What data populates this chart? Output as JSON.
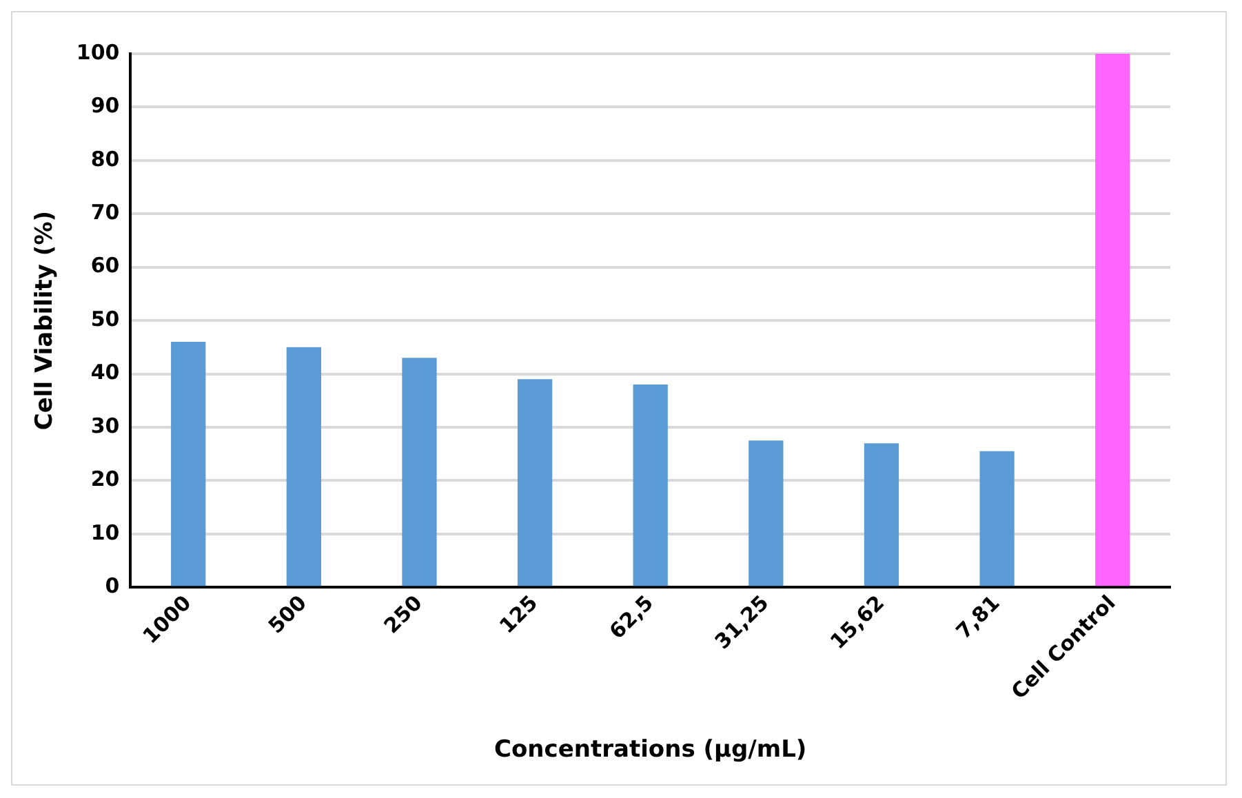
{
  "chart_data": {
    "type": "bar",
    "xlabel": "Concentrations (µg/mL)",
    "ylabel": "Cell Viability (%)",
    "categories": [
      "1000",
      "500",
      "250",
      "125",
      "62,5",
      "31,25",
      "15,62",
      "7,81",
      "Cell Control"
    ],
    "values": [
      46,
      45,
      43,
      39,
      38,
      27.5,
      27,
      25.5,
      100
    ],
    "colors": [
      "#5b9bd5",
      "#5b9bd5",
      "#5b9bd5",
      "#5b9bd5",
      "#5b9bd5",
      "#5b9bd5",
      "#5b9bd5",
      "#5b9bd5",
      "#ff66ff"
    ],
    "ylim": [
      0,
      100
    ],
    "yticks": [
      0,
      10,
      20,
      30,
      40,
      50,
      60,
      70,
      80,
      90,
      100
    ],
    "grid": "y",
    "legend": false
  }
}
